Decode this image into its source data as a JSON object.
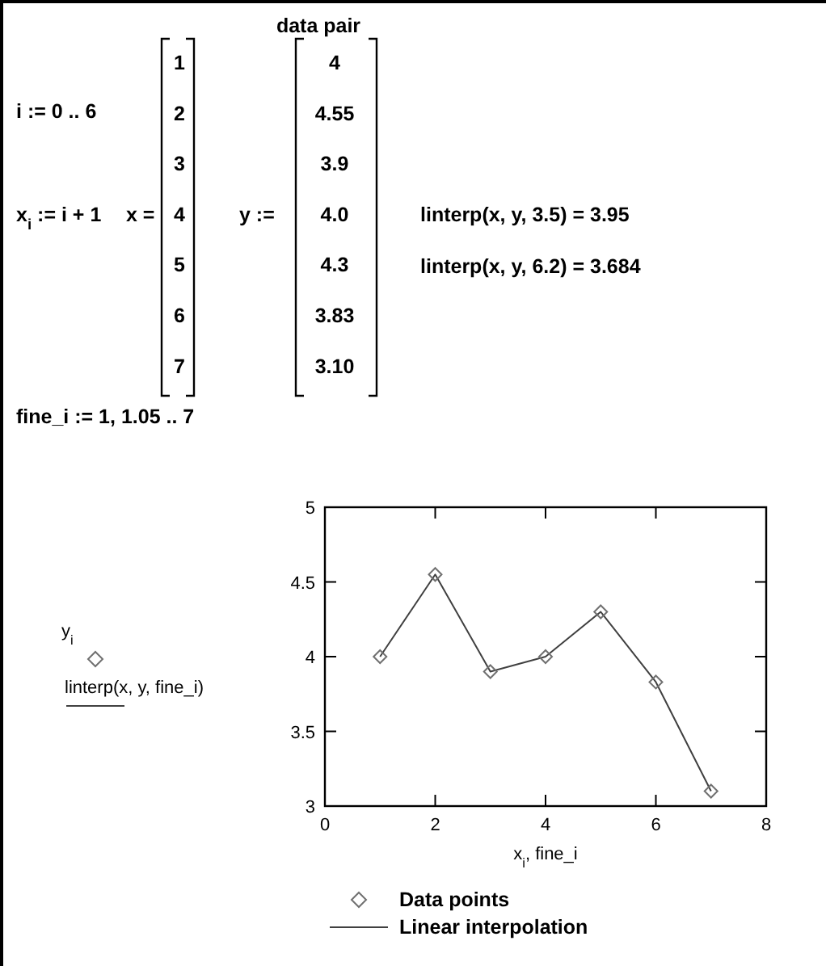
{
  "chart_data": {
    "type": "scatter",
    "x": [
      1,
      2,
      3,
      4,
      5,
      6,
      7
    ],
    "series": [
      {
        "name": "Data points",
        "marker": "diamond",
        "color": "#707070",
        "values": [
          4,
          4.55,
          3.9,
          4.0,
          4.3,
          3.83,
          3.1
        ]
      },
      {
        "name": "Linear interpolation",
        "type": "line",
        "marker": "none",
        "line_style": "solid",
        "color": "#404040",
        "values": [
          4,
          4.55,
          3.9,
          4.0,
          4.3,
          3.83,
          3.1
        ]
      }
    ],
    "xlim": [
      0,
      8
    ],
    "xticks": [
      0,
      2,
      4,
      6,
      8
    ],
    "ylim": [
      3,
      5
    ],
    "yticks": [
      3,
      3.5,
      4,
      4.5,
      5
    ],
    "xlabel": "x$_{i}$, fine_i",
    "legend": "bottom",
    "grid": false,
    "annotations": [
      "data pair",
      "i := 0 .. 6",
      "x$_{i}$ := i + 1",
      "x =",
      "y :=",
      "linterp(x, y, 3.5) = 3.95",
      "linterp(x, y, 6.2) = 3.684",
      "fine_i := 1, 1.05 .. 7",
      "1",
      "2",
      "3",
      "4",
      "5",
      "6",
      "7",
      "4",
      "4.55",
      "3.9",
      "4.0",
      "4.3",
      "3.83",
      "3.10",
      "linterp(x, y, fine_i)",
      "y$_{i}$"
    ]
  }
}
